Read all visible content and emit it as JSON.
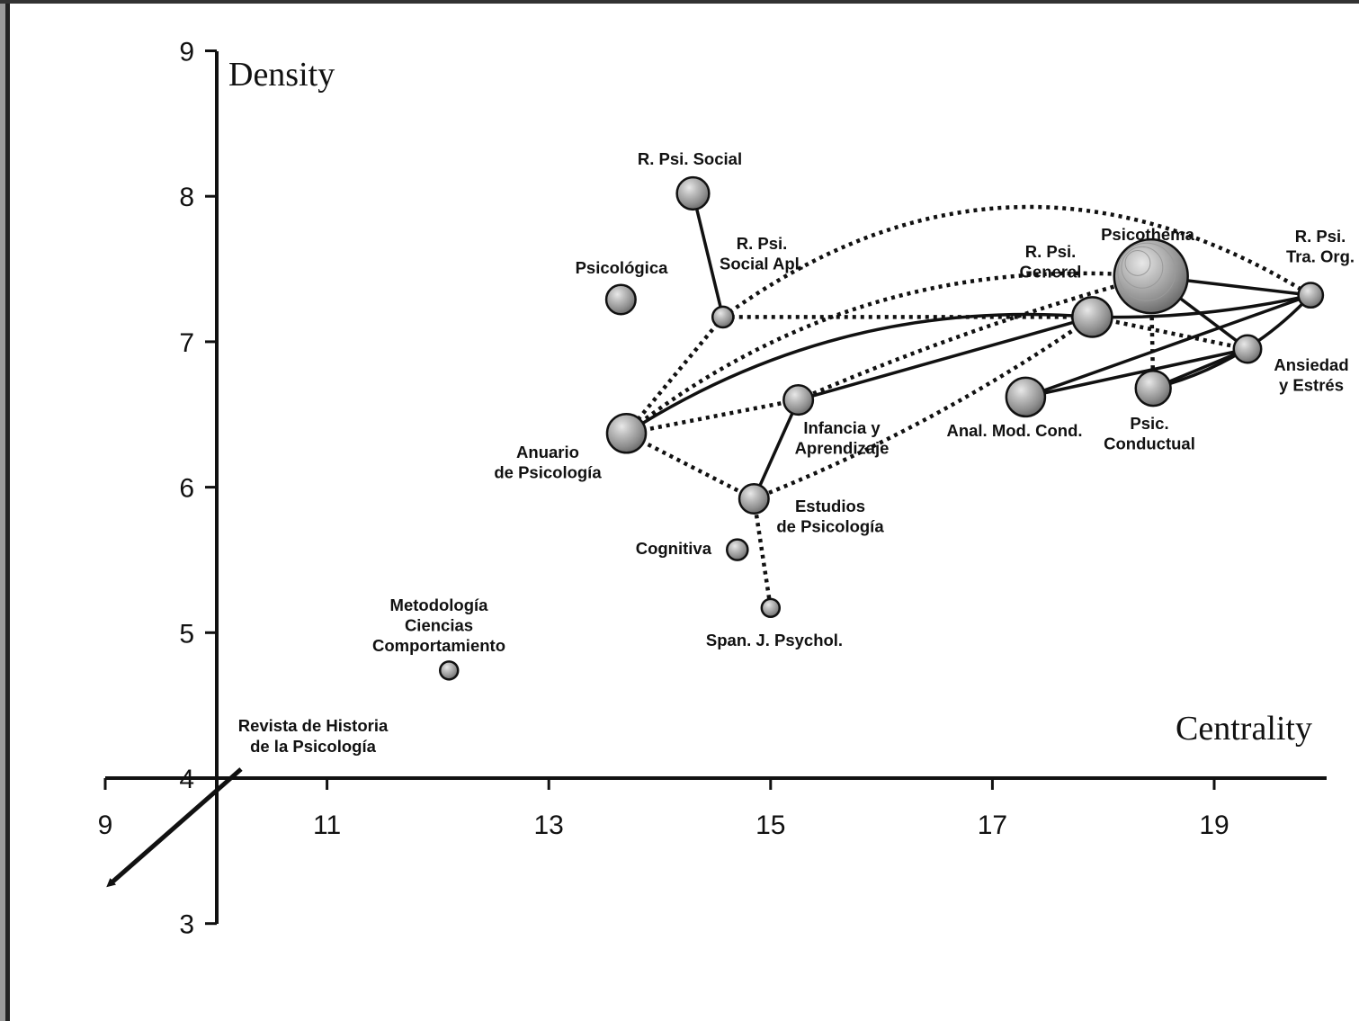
{
  "chart_data": {
    "type": "scatter",
    "subtype": "strategic-diagram-network",
    "xlabel": "Centrality",
    "ylabel": "Density",
    "xlim": [
      9,
      19.9
    ],
    "ylim": [
      3,
      9
    ],
    "x_ticks": [
      9,
      11,
      13,
      15,
      17,
      19
    ],
    "y_ticks": [
      3,
      4,
      5,
      6,
      7,
      8,
      9
    ],
    "grid": false,
    "legend": "none",
    "nodes": [
      {
        "id": "rpsisocial",
        "label": [
          "R. Psi. Social"
        ],
        "x": 14.3,
        "y": 8.02,
        "size": 1.7
      },
      {
        "id": "psicologica",
        "label": [
          "Psicológica"
        ],
        "x": 13.65,
        "y": 7.29,
        "size": 1.55
      },
      {
        "id": "rpsisocialapl",
        "label": [
          "R. Psi.",
          "Social Apl."
        ],
        "x": 14.57,
        "y": 7.17,
        "size": 1.1
      },
      {
        "id": "anuario",
        "label": [
          "Anuario",
          "de Psicología"
        ],
        "x": 13.7,
        "y": 6.37,
        "size": 2.05
      },
      {
        "id": "infancia",
        "label": [
          "Infancia y",
          "Aprendizaje"
        ],
        "x": 15.25,
        "y": 6.6,
        "size": 1.55
      },
      {
        "id": "estudios",
        "label": [
          "Estudios",
          "de Psicología"
        ],
        "x": 14.85,
        "y": 5.92,
        "size": 1.55
      },
      {
        "id": "cognitiva",
        "label": [
          "Cognitiva"
        ],
        "x": 14.7,
        "y": 5.57,
        "size": 1.1
      },
      {
        "id": "spanj",
        "label": [
          "Span. J. Psychol."
        ],
        "x": 15.0,
        "y": 5.17,
        "size": 0.95
      },
      {
        "id": "metodologia",
        "label": [
          "Metodología",
          "Ciencias",
          "Comportamiento"
        ],
        "x": 12.1,
        "y": 4.74,
        "size": 0.95
      },
      {
        "id": "psicothema",
        "label": [
          "Psicothema"
        ],
        "x": 18.43,
        "y": 7.45,
        "size": 3.9
      },
      {
        "id": "rpsigeneral",
        "label": [
          "R. Psi.",
          "General"
        ],
        "x": 17.9,
        "y": 7.17,
        "size": 2.1
      },
      {
        "id": "rpsitraorg",
        "label": [
          "R. Psi.",
          "Tra. Org."
        ],
        "x": 19.87,
        "y": 7.32,
        "size": 1.3
      },
      {
        "id": "ansiedad",
        "label": [
          "Ansiedad",
          "y Estrés"
        ],
        "x": 19.3,
        "y": 6.95,
        "size": 1.45
      },
      {
        "id": "anal",
        "label": [
          "Anal. Mod. Cond."
        ],
        "x": 17.3,
        "y": 6.62,
        "size": 2.05
      },
      {
        "id": "psicconductual",
        "label": [
          "Psic.",
          "Conductual"
        ],
        "x": 18.45,
        "y": 6.68,
        "size": 1.85
      }
    ],
    "edges": [
      {
        "from": "rpsisocial",
        "to": "rpsisocialapl",
        "style": "solid"
      },
      {
        "from": "rpsisocialapl",
        "to": "rpsitraorg",
        "style": "dotted",
        "curve": 220
      },
      {
        "from": "rpsisocialapl",
        "to": "rpsigeneral",
        "style": "dotted"
      },
      {
        "from": "rpsisocialapl",
        "to": "anuario",
        "style": "dotted"
      },
      {
        "from": "anuario",
        "to": "rpsigeneral",
        "style": "solid",
        "curve": 90
      },
      {
        "from": "anuario",
        "to": "psicothema",
        "style": "dotted",
        "curve": 120
      },
      {
        "from": "anuario",
        "to": "infancia",
        "style": "dotted"
      },
      {
        "from": "anuario",
        "to": "estudios",
        "style": "dotted"
      },
      {
        "from": "infancia",
        "to": "rpsigeneral",
        "style": "solid"
      },
      {
        "from": "infancia",
        "to": "psicothema",
        "style": "dotted",
        "curve": 15
      },
      {
        "from": "infancia",
        "to": "estudios",
        "style": "solid"
      },
      {
        "from": "estudios",
        "to": "rpsigeneral",
        "style": "dotted",
        "curve": -25
      },
      {
        "from": "estudios",
        "to": "spanj",
        "style": "dotted"
      },
      {
        "from": "rpsigeneral",
        "to": "rpsitraorg",
        "style": "solid",
        "curve": -15
      },
      {
        "from": "rpsigeneral",
        "to": "ansiedad",
        "style": "dotted"
      },
      {
        "from": "psicothema",
        "to": "rpsitraorg",
        "style": "solid"
      },
      {
        "from": "psicothema",
        "to": "ansiedad",
        "style": "solid"
      },
      {
        "from": "psicothema",
        "to": "psicconductual",
        "style": "dotted"
      },
      {
        "from": "anal",
        "to": "rpsitraorg",
        "style": "solid"
      },
      {
        "from": "anal",
        "to": "ansiedad",
        "style": "solid"
      },
      {
        "from": "psicconductual",
        "to": "rpsitraorg",
        "style": "solid",
        "curve": -30
      },
      {
        "from": "psicconductual",
        "to": "ansiedad",
        "style": "solid"
      }
    ],
    "annotations": [
      {
        "id": "revista",
        "label": [
          "Revista de Historia",
          "de la Psicología"
        ],
        "x": 10.1,
        "y": 4.0,
        "note": "arrow points off-chart toward lower-left"
      }
    ]
  }
}
